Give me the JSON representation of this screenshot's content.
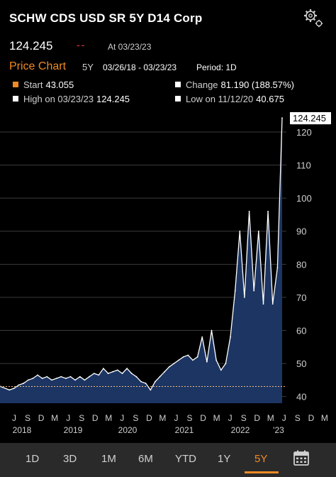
{
  "header": {
    "title": "SCHW CDS USD SR 5Y D14 Corp",
    "price": "124.245",
    "change": "--",
    "as_of": "At 03/23/23"
  },
  "price_chart": {
    "title": "Price Chart",
    "range": "5Y",
    "dates": "03/26/18 - 03/23/23",
    "period": "Period: 1D"
  },
  "stats": {
    "start_label": "Start",
    "start_value": "43.055",
    "change_label": "Change",
    "change_value": "81.190 (188.57%)",
    "high_label": "High on 03/23/23",
    "high_value": "124.245",
    "low_label": "Low on 11/12/20",
    "low_value": "40.675",
    "start_color": "#f08a24",
    "marker_color": "#ffffff"
  },
  "chart_data": {
    "type": "area",
    "last_value_label": "124.245",
    "y_ticks": [
      "120",
      "110",
      "100",
      "90",
      "80",
      "70",
      "60",
      "50",
      "40"
    ],
    "y_range": [
      38,
      126
    ],
    "x_month_labels": [
      "J",
      "S",
      "D",
      "M",
      "J",
      "S",
      "D",
      "M",
      "J",
      "S",
      "D",
      "M",
      "J",
      "S",
      "D",
      "M",
      "J",
      "S",
      "D",
      "M",
      "J",
      "S",
      "D",
      "M"
    ],
    "x_year_labels": [
      "2018",
      "2019",
      "2020",
      "2021",
      "2022",
      "'23"
    ],
    "start_reference_line": 43.055,
    "fill_color": "#1c3563",
    "line_color": "#ffffff",
    "points": [
      {
        "x": "2018-03",
        "y": 43.1
      },
      {
        "x": "2018-05",
        "y": 42.0
      },
      {
        "x": "2018-06",
        "y": 42.5
      },
      {
        "x": "2018-07",
        "y": 43.5
      },
      {
        "x": "2018-08",
        "y": 44.0
      },
      {
        "x": "2018-09",
        "y": 45.0
      },
      {
        "x": "2018-10",
        "y": 45.5
      },
      {
        "x": "2018-11",
        "y": 46.5
      },
      {
        "x": "2018-12",
        "y": 45.5
      },
      {
        "x": "2019-01",
        "y": 46.0
      },
      {
        "x": "2019-02",
        "y": 45.0
      },
      {
        "x": "2019-03",
        "y": 45.5
      },
      {
        "x": "2019-04",
        "y": 46.0
      },
      {
        "x": "2019-05",
        "y": 45.5
      },
      {
        "x": "2019-06",
        "y": 46.0
      },
      {
        "x": "2019-07",
        "y": 45.0
      },
      {
        "x": "2019-08",
        "y": 46.0
      },
      {
        "x": "2019-09",
        "y": 45.0
      },
      {
        "x": "2019-10",
        "y": 46.0
      },
      {
        "x": "2019-11",
        "y": 47.0
      },
      {
        "x": "2019-12",
        "y": 46.5
      },
      {
        "x": "2020-01",
        "y": 48.5
      },
      {
        "x": "2020-02",
        "y": 47.0
      },
      {
        "x": "2020-03",
        "y": 47.5
      },
      {
        "x": "2020-04",
        "y": 48.0
      },
      {
        "x": "2020-05",
        "y": 47.0
      },
      {
        "x": "2020-06",
        "y": 48.5
      },
      {
        "x": "2020-07",
        "y": 47.0
      },
      {
        "x": "2020-08",
        "y": 46.0
      },
      {
        "x": "2020-09",
        "y": 44.5
      },
      {
        "x": "2020-10",
        "y": 44.0
      },
      {
        "x": "2020-11",
        "y": 42.0
      },
      {
        "x": "2020-12",
        "y": 44.5
      },
      {
        "x": "2021-01",
        "y": 46.0
      },
      {
        "x": "2021-02",
        "y": 47.5
      },
      {
        "x": "2021-03",
        "y": 49.0
      },
      {
        "x": "2021-04",
        "y": 50.0
      },
      {
        "x": "2021-05",
        "y": 51.0
      },
      {
        "x": "2021-06",
        "y": 52.0
      },
      {
        "x": "2021-07",
        "y": 52.5
      },
      {
        "x": "2021-08",
        "y": 51.0
      },
      {
        "x": "2021-09",
        "y": 52.0
      },
      {
        "x": "2021-10",
        "y": 58.0
      },
      {
        "x": "2021-11",
        "y": 50.5
      },
      {
        "x": "2021-12",
        "y": 60.0
      },
      {
        "x": "2022-01",
        "y": 51.0
      },
      {
        "x": "2022-02",
        "y": 48.0
      },
      {
        "x": "2022-03",
        "y": 50.0
      },
      {
        "x": "2022-04",
        "y": 58.0
      },
      {
        "x": "2022-05",
        "y": 72.0
      },
      {
        "x": "2022-06",
        "y": 90.0
      },
      {
        "x": "2022-07",
        "y": 70.0
      },
      {
        "x": "2022-08",
        "y": 96.0
      },
      {
        "x": "2022-09",
        "y": 72.0
      },
      {
        "x": "2022-10",
        "y": 90.0
      },
      {
        "x": "2022-11",
        "y": 68.0
      },
      {
        "x": "2022-12",
        "y": 96.0
      },
      {
        "x": "2023-01",
        "y": 68.0
      },
      {
        "x": "2023-02",
        "y": 79.0
      },
      {
        "x": "2023-03",
        "y": 124.245
      }
    ]
  },
  "tabs": [
    "1D",
    "3D",
    "1M",
    "6M",
    "YTD",
    "1Y",
    "5Y"
  ],
  "active_tab": "5Y"
}
